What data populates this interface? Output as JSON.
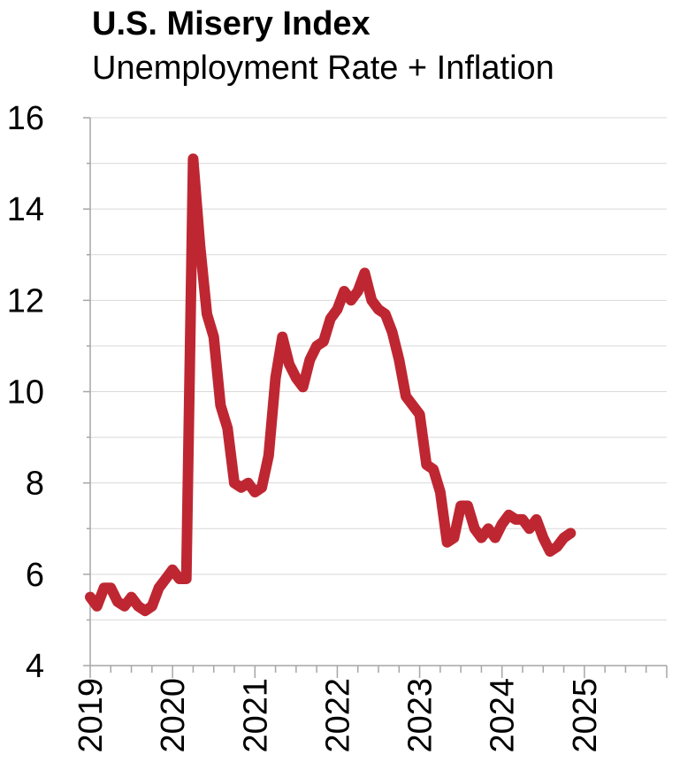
{
  "chart_data": {
    "type": "line",
    "title": "U.S. Misery Index",
    "subtitle": "Unemployment Rate + Inflation",
    "xlabel": "",
    "ylabel": "",
    "ylim": [
      4,
      16
    ],
    "yticks": [
      4,
      6,
      8,
      10,
      12,
      14,
      16
    ],
    "xlim": [
      2019,
      2026
    ],
    "xticks": [
      "2019",
      "2020",
      "2021",
      "2022",
      "2023",
      "2024",
      "2025"
    ],
    "grid": "horizontal",
    "series": [
      {
        "color": "#BE2732",
        "x": [
          2019.0,
          2019.083,
          2019.167,
          2019.25,
          2019.333,
          2019.417,
          2019.5,
          2019.583,
          2019.667,
          2019.75,
          2019.833,
          2019.917,
          2020.0,
          2020.083,
          2020.167,
          2020.25,
          2020.333,
          2020.417,
          2020.5,
          2020.583,
          2020.667,
          2020.75,
          2020.833,
          2020.917,
          2021.0,
          2021.083,
          2021.167,
          2021.25,
          2021.333,
          2021.417,
          2021.5,
          2021.583,
          2021.667,
          2021.75,
          2021.833,
          2021.917,
          2022.0,
          2022.083,
          2022.167,
          2022.25,
          2022.333,
          2022.417,
          2022.5,
          2022.583,
          2022.667,
          2022.75,
          2022.833,
          2022.917,
          2023.0,
          2023.083,
          2023.167,
          2023.25,
          2023.333,
          2023.417,
          2023.5,
          2023.583,
          2023.667,
          2023.75,
          2023.833,
          2023.917,
          2024.0,
          2024.083,
          2024.167,
          2024.25,
          2024.333,
          2024.417,
          2024.5,
          2024.583,
          2024.667,
          2024.75,
          2024.833
        ],
        "values": [
          5.5,
          5.3,
          5.7,
          5.7,
          5.4,
          5.3,
          5.5,
          5.3,
          5.2,
          5.3,
          5.7,
          5.9,
          6.1,
          5.9,
          5.9,
          15.1,
          13.2,
          11.7,
          11.2,
          9.7,
          9.2,
          8.0,
          7.9,
          8.0,
          7.8,
          7.9,
          8.6,
          10.3,
          11.2,
          10.6,
          10.3,
          10.1,
          10.7,
          11.0,
          11.1,
          11.6,
          11.8,
          12.2,
          12.0,
          12.2,
          12.6,
          12.0,
          11.8,
          11.7,
          11.3,
          10.7,
          9.9,
          9.7,
          9.5,
          8.4,
          8.3,
          7.8,
          6.7,
          6.8,
          7.5,
          7.5,
          7.0,
          6.8,
          7.0,
          6.8,
          7.1,
          7.3,
          7.2,
          7.2,
          7.0,
          7.2,
          6.8,
          6.5,
          6.6,
          6.8,
          6.9
        ]
      }
    ]
  }
}
